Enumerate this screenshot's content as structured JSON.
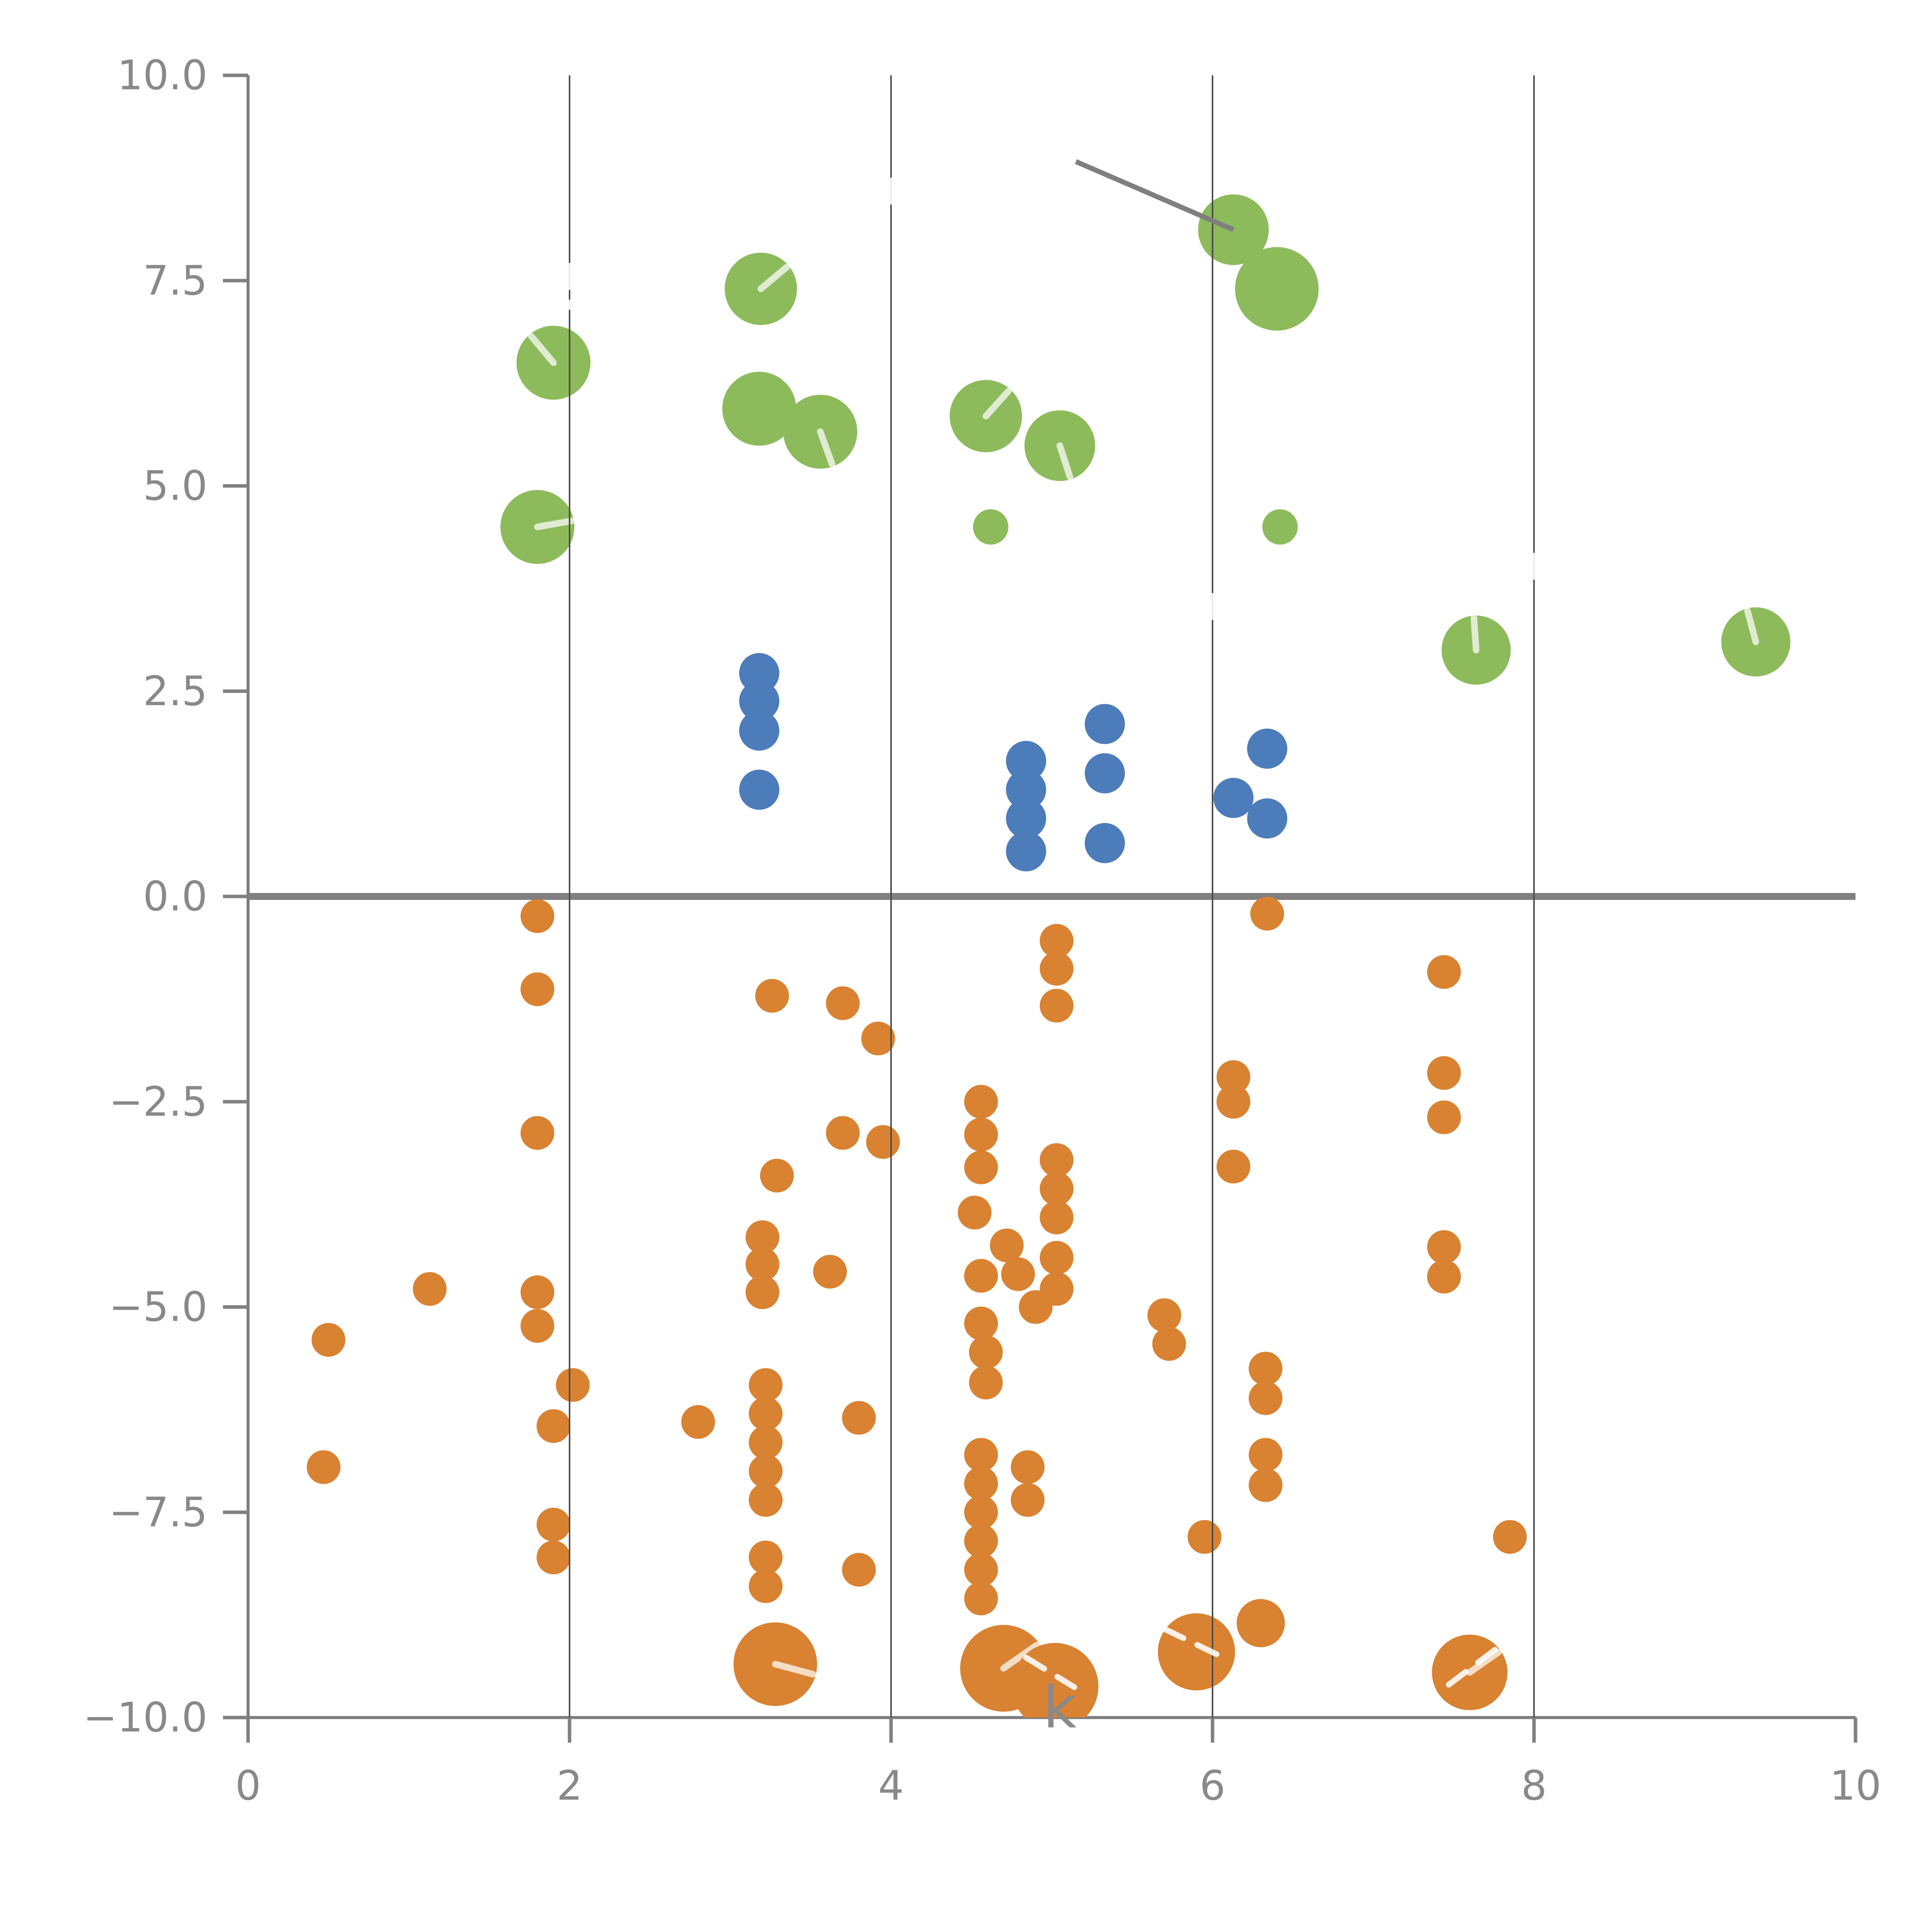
{
  "figure": {
    "background": "#ffffff",
    "description": "Bubble scatter plot, three colored series, vertical gridlines, bold zero line, gray annotation pointer line, partially hidden white annotation text"
  },
  "chart_data": {
    "type": "scatter",
    "title": "",
    "xlabel": "",
    "ylabel": "",
    "x_axis": {
      "range": [
        0,
        10
      ],
      "tick_values": [
        0,
        2,
        4,
        6,
        8,
        10
      ],
      "tick_labels": [
        "0",
        "2",
        "4",
        "6",
        "8",
        "10"
      ]
    },
    "y_axis": {
      "range": [
        -10,
        10
      ],
      "tick_values": [
        10,
        7.5,
        5,
        2.5,
        0,
        -2.5,
        -5,
        -7.5,
        -10
      ],
      "tick_labels": [
        "10.0",
        "7.5",
        "5.0",
        "2.5",
        "0.0",
        "−2.5",
        "−5.0",
        "−7.5",
        "−10.0"
      ]
    },
    "grid": {
      "vertical_at": [
        2,
        4,
        6,
        8
      ],
      "horizontal": false,
      "zero_line_y": 0
    },
    "legend": "none",
    "point_format": "[x, y, radius_in_x_units (optional), needle_angle_deg_from_12oclock (optional, null=no needle)]",
    "series": [
      {
        "name": "orange",
        "color": "#d98231",
        "default_radius": 0.105,
        "points": [
          [
            0.5,
            -5.4
          ],
          [
            0.47,
            -6.95
          ],
          [
            1.13,
            -4.78
          ],
          [
            1.8,
            -0.24
          ],
          [
            1.8,
            -1.13
          ],
          [
            1.8,
            -2.88
          ],
          [
            1.8,
            -4.82
          ],
          [
            1.8,
            -5.23
          ],
          [
            2.02,
            -5.95
          ],
          [
            1.9,
            -6.45
          ],
          [
            1.9,
            -7.65
          ],
          [
            1.9,
            -8.05
          ],
          [
            2.8,
            -6.4
          ],
          [
            3.26,
            -1.21
          ],
          [
            3.29,
            -3.4
          ],
          [
            3.2,
            -4.15
          ],
          [
            3.2,
            -4.48
          ],
          [
            3.2,
            -4.82
          ],
          [
            3.22,
            -5.95
          ],
          [
            3.22,
            -6.3
          ],
          [
            3.22,
            -6.65
          ],
          [
            3.22,
            -7.0
          ],
          [
            3.22,
            -7.35
          ],
          [
            3.22,
            -8.05
          ],
          [
            3.22,
            -8.4
          ],
          [
            3.28,
            -9.35,
            0.26,
            105
          ],
          [
            3.7,
            -1.3
          ],
          [
            3.7,
            -2.88
          ],
          [
            3.62,
            -4.57
          ],
          [
            3.8,
            -6.35
          ],
          [
            3.8,
            -8.2
          ],
          [
            3.92,
            -1.73
          ],
          [
            3.95,
            -2.99
          ],
          [
            4.56,
            -2.5
          ],
          [
            4.56,
            -2.9
          ],
          [
            4.56,
            -3.3
          ],
          [
            4.52,
            -3.85
          ],
          [
            4.72,
            -4.25
          ],
          [
            4.79,
            -4.6
          ],
          [
            4.56,
            -4.62
          ],
          [
            4.9,
            -5.0
          ],
          [
            4.56,
            -5.2
          ],
          [
            4.59,
            -5.55
          ],
          [
            4.59,
            -5.92
          ],
          [
            4.56,
            -6.8
          ],
          [
            4.56,
            -7.15
          ],
          [
            4.56,
            -7.5
          ],
          [
            4.56,
            -7.85
          ],
          [
            4.56,
            -8.2
          ],
          [
            4.56,
            -8.55
          ],
          [
            4.85,
            -6.95
          ],
          [
            4.85,
            -7.35
          ],
          [
            4.7,
            -9.4,
            0.27,
            55
          ],
          [
            5.03,
            -0.54
          ],
          [
            5.03,
            -0.88
          ],
          [
            5.03,
            -1.33
          ],
          [
            5.03,
            -3.21
          ],
          [
            5.03,
            -3.56
          ],
          [
            5.03,
            -3.91
          ],
          [
            5.03,
            -4.4
          ],
          [
            5.03,
            -4.78
          ],
          [
            5.02,
            -9.62,
            0.27,
            null
          ],
          [
            5.7,
            -5.1
          ],
          [
            5.73,
            -5.45
          ],
          [
            5.95,
            -7.8
          ],
          [
            5.9,
            -9.2,
            0.24,
            null
          ],
          [
            6.34,
            -0.21
          ],
          [
            6.13,
            -2.2
          ],
          [
            6.13,
            -2.5
          ],
          [
            6.13,
            -3.29
          ],
          [
            6.33,
            -5.75
          ],
          [
            6.33,
            -6.11
          ],
          [
            6.33,
            -6.8
          ],
          [
            6.33,
            -7.17
          ],
          [
            6.3,
            -8.85,
            0.15,
            null
          ],
          [
            7.44,
            -0.92
          ],
          [
            7.44,
            -2.15
          ],
          [
            7.44,
            -2.69
          ],
          [
            7.44,
            -4.27
          ],
          [
            7.44,
            -4.63
          ],
          [
            7.85,
            -7.8
          ],
          [
            7.6,
            -9.45,
            0.235,
            55
          ]
        ]
      },
      {
        "name": "blue",
        "color": "#4d7cba",
        "default_radius": 0.125,
        "points": [
          [
            3.18,
            2.72
          ],
          [
            3.18,
            2.38
          ],
          [
            3.18,
            2.02
          ],
          [
            3.18,
            1.3
          ],
          [
            4.84,
            1.65
          ],
          [
            4.84,
            1.3
          ],
          [
            4.84,
            0.95
          ],
          [
            4.84,
            0.55
          ],
          [
            5.33,
            2.1
          ],
          [
            5.33,
            1.5
          ],
          [
            5.33,
            0.65
          ],
          [
            6.13,
            1.2
          ],
          [
            6.34,
            1.8
          ],
          [
            6.34,
            0.95
          ]
        ]
      },
      {
        "name": "green",
        "color": "#8dbb5c",
        "default_radius": 0.22,
        "points": [
          [
            1.9,
            6.5,
            0.23,
            -40
          ],
          [
            1.8,
            4.5,
            0.23,
            80
          ],
          [
            3.19,
            7.4,
            0.225,
            50
          ],
          [
            3.18,
            5.94,
            0.23,
            null
          ],
          [
            3.56,
            5.66,
            0.23,
            160
          ],
          [
            4.59,
            5.85,
            0.225,
            42
          ],
          [
            4.62,
            4.5,
            0.11,
            null
          ],
          [
            5.05,
            5.49,
            0.22,
            162
          ],
          [
            6.13,
            8.12,
            0.22,
            null
          ],
          [
            6.4,
            7.4,
            0.26,
            null
          ],
          [
            6.42,
            4.5,
            0.11,
            null
          ],
          [
            7.64,
            3.0,
            0.215,
            -4
          ],
          [
            9.38,
            3.1,
            0.215,
            -15
          ]
        ]
      }
    ],
    "annotations": {
      "gray_pointer_line": {
        "x1": 5.15,
        "y1": 8.95,
        "x2": 6.13,
        "y2": 8.12,
        "color": "#7f7f7f"
      },
      "white_texts": [
        {
          "text": "k",
          "x": 5.05,
          "y": -9.88
        }
      ],
      "white_dash_segments": [
        {
          "x1": 2.0,
          "y1": 7.68,
          "x2": 2.0,
          "y2": 7.18
        },
        {
          "x1": 4.0,
          "y1": 8.72,
          "x2": 4.0,
          "y2": 8.28
        },
        {
          "x1": 6.0,
          "y1": 3.66,
          "x2": 6.0,
          "y2": 3.22
        },
        {
          "x1": 8.0,
          "y1": 4.15,
          "x2": 8.0,
          "y2": 3.78
        },
        {
          "x1": 4.84,
          "y1": -9.27,
          "x2": 5.14,
          "y2": -9.63
        },
        {
          "x1": 5.7,
          "y1": -8.92,
          "x2": 6.1,
          "y2": -9.3
        },
        {
          "x1": 7.47,
          "y1": -9.6,
          "x2": 7.76,
          "y2": -9.17
        }
      ]
    },
    "styles": {
      "spine_color": "#808080",
      "tick_label_color": "#898989",
      "gridline_color": "#4d4d4d",
      "zero_line_color": "#808080",
      "needle_color": "rgba(255,255,255,0.72)",
      "white_annotation_color": "rgba(255,255,255,0.88)"
    }
  }
}
